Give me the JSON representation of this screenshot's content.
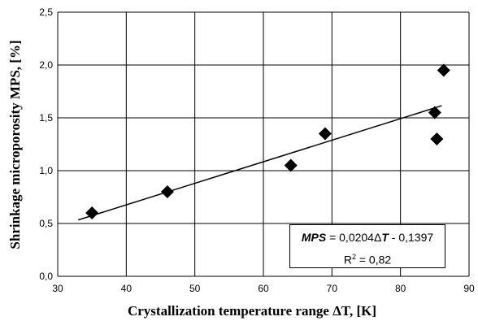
{
  "chart_data": {
    "type": "scatter",
    "xlabel": "Crystallization temperature range ΔT, [K]",
    "ylabel": "Shrinkage microporosity MPS, [%]",
    "xlim": [
      30,
      90
    ],
    "ylim": [
      0,
      2.5
    ],
    "x_ticks": [
      "30",
      "40",
      "50",
      "60",
      "70",
      "80",
      "90"
    ],
    "y_ticks": [
      "0,0",
      "0,5",
      "1,0",
      "1,5",
      "2,0",
      "2,5"
    ],
    "grid": true,
    "points": [
      {
        "x": 35,
        "y": 0.6
      },
      {
        "x": 46,
        "y": 0.8
      },
      {
        "x": 64,
        "y": 1.05
      },
      {
        "x": 69,
        "y": 1.35
      },
      {
        "x": 85,
        "y": 1.55
      },
      {
        "x": 85.3,
        "y": 1.3
      },
      {
        "x": 86.3,
        "y": 1.95
      }
    ],
    "trendline": {
      "x_start": 33,
      "x_end": 86,
      "slope": 0.0204,
      "intercept": -0.1397
    },
    "annotation": {
      "eq_var": "MPS",
      "eq_mid": " = 0,0204Δ",
      "eq_var2": "T",
      "eq_tail": " - 0,1397",
      "r2_prefix": "R",
      "r2_sup": "2",
      "r2_value": " = 0,82"
    }
  }
}
